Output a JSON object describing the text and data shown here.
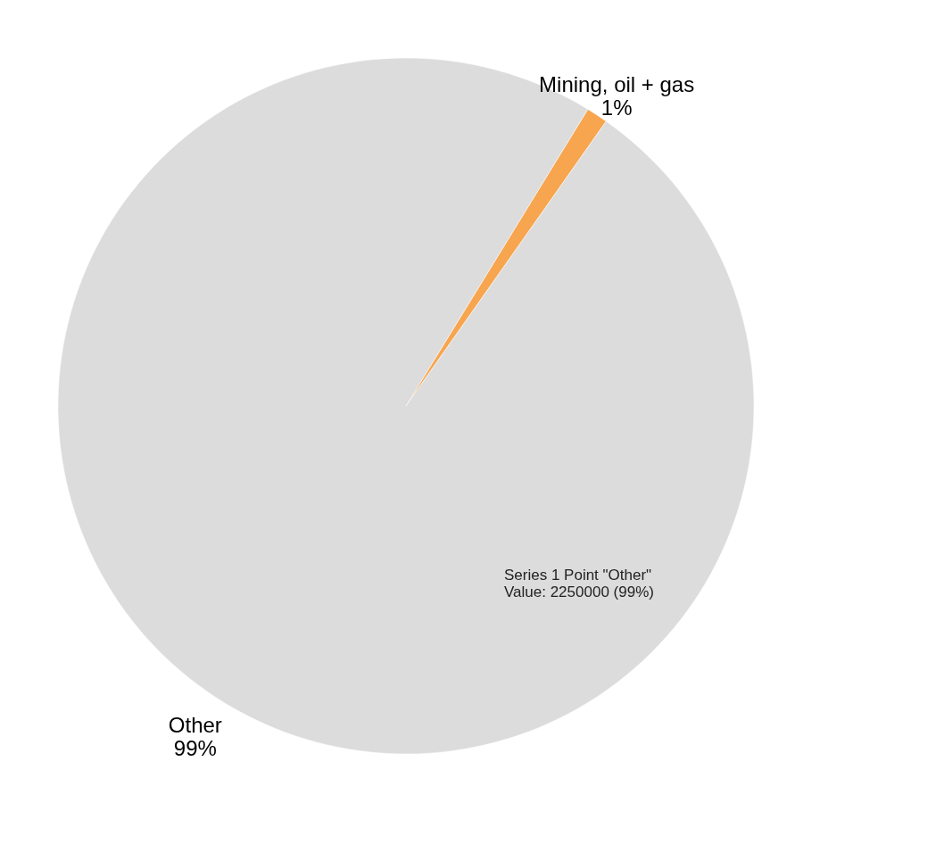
{
  "chart_data": {
    "type": "pie",
    "categories": [
      "Mining, oil + gas",
      "Other"
    ],
    "values": [
      1,
      99
    ],
    "colors": [
      "#f7a54f",
      "#dcdcdc"
    ],
    "value_labels": [
      "1%",
      "99%"
    ],
    "annotations": [
      "Series 1 Point \"Other\"\nValue: 2250000 (99%)"
    ]
  }
}
